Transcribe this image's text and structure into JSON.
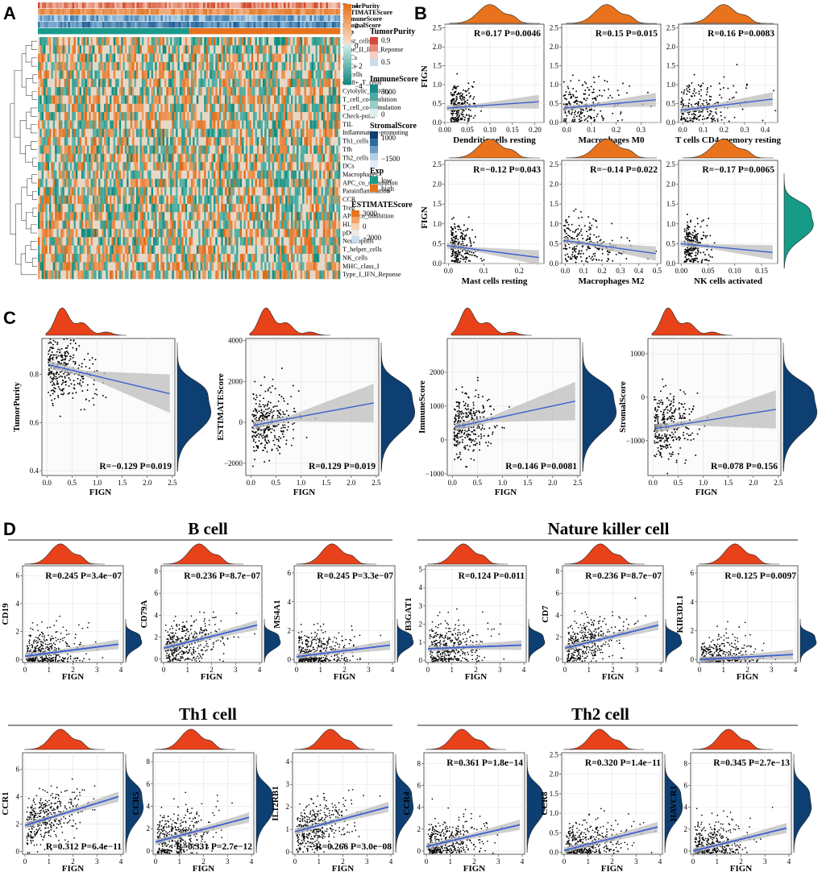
{
  "panels": {
    "A": "A",
    "B": "B",
    "C": "C",
    "D": "D"
  },
  "colors": {
    "orange": "#E8731C",
    "teal": "#1A9A8A",
    "red_density": "#E8421A",
    "navy_density": "#0D3F73",
    "teal_density": "#159B86",
    "fit_line": "#3C5FD0",
    "ci_band": "#BDBDBD",
    "points": "#000000"
  },
  "chart_data": [
    {
      "type": "heatmap",
      "panel": "A",
      "annotation_tracks": [
        "TumorPurity",
        "ESTIMATEScore",
        "ImmuneScore",
        "StromalScore",
        "Exp"
      ],
      "rows": [
        "Mast_cells",
        "Type_II_IFN_Reponse",
        "aDCs",
        "iDCs",
        "B_cells",
        "CD8+_T_cells",
        "Cytolytic_activity",
        "T_cell_co-inhibition",
        "T_cell_co-stimulation",
        "Check-point",
        "TIL",
        "Inflammation-promoting",
        "Th1_cells",
        "Tfh",
        "Th2_cells",
        "DCs",
        "Macrophages",
        "APC_co_stimulation",
        "Parainflammation",
        "CCR",
        "Treg",
        "APC_co_inhibition",
        "HLA",
        "pDCs",
        "Neutrophils",
        "T_helper_cells",
        "NK_cells",
        "MHC_class_I",
        "Type_I_IFN_Reponse"
      ],
      "color_scale": {
        "title": "",
        "ticks": [
          "4",
          "2",
          "0",
          "−2",
          "−4"
        ],
        "range": [
          -4,
          4
        ]
      },
      "legends": [
        {
          "title": "TumorPurity",
          "ticks": [
            "0.9",
            "0.5"
          ]
        },
        {
          "title": "ImmuneScore",
          "ticks": [
            "3000",
            "0"
          ]
        },
        {
          "title": "StromalScore",
          "ticks": [
            "1000",
            "−1500"
          ]
        },
        {
          "title": "Exp",
          "ticks": [
            "low",
            "high"
          ]
        },
        {
          "title": "ESTIMATEScore",
          "ticks": [
            "3000",
            "0",
            "−2000"
          ]
        }
      ]
    },
    {
      "type": "scatter",
      "panel": "B",
      "ylabel": "FIGN",
      "y_ticks": [
        "0.0",
        "0.5",
        "1.0",
        "1.5",
        "2.0",
        "2.5"
      ],
      "ylim": [
        0,
        2.6
      ],
      "plots": [
        {
          "xlabel": "Dendritic cells resting",
          "stat": "R=0.17 P=0.0046",
          "x_ticks": [
            "0.00",
            "0.05",
            "0.10",
            "0.15",
            "0.20"
          ],
          "xlim": [
            0,
            0.22
          ],
          "fit": [
            0.38,
            0.55
          ]
        },
        {
          "xlabel": "Macrophages M0",
          "stat": "R=0.15 P=0.015",
          "x_ticks": [
            "0.0",
            "0.1",
            "0.2",
            "0.3"
          ],
          "xlim": [
            -0.02,
            0.38
          ],
          "fit": [
            0.38,
            0.6
          ]
        },
        {
          "xlabel": "T cells CD4 memory resting",
          "stat": "R=0.16 P=0.0083",
          "x_ticks": [
            "0.0",
            "0.1",
            "0.2",
            "0.3",
            "0.4"
          ],
          "xlim": [
            -0.02,
            0.46
          ],
          "fit": [
            0.32,
            0.62
          ]
        },
        {
          "xlabel": "Mast cells resting",
          "stat": "R=−0.12 P=0.043",
          "x_ticks": [
            "0.0",
            "0.1",
            "0.2"
          ],
          "xlim": [
            -0.01,
            0.27
          ],
          "fit": [
            0.45,
            0.15
          ]
        },
        {
          "xlabel": "Macrophages M2",
          "stat": "R=−0.14 P=0.022",
          "x_ticks": [
            "0.0",
            "0.1",
            "0.2",
            "0.3",
            "0.4",
            "0.5"
          ],
          "xlim": [
            -0.02,
            0.52
          ],
          "fit": [
            0.58,
            0.25
          ]
        },
        {
          "xlabel": "NK cells activated",
          "stat": "R=−0.17 P=0.0065",
          "x_ticks": [
            "0.00",
            "0.05",
            "0.10",
            "0.15"
          ],
          "xlim": [
            -0.005,
            0.18
          ],
          "fit": [
            0.5,
            0.28
          ]
        }
      ]
    },
    {
      "type": "scatter",
      "panel": "C",
      "xlabel": "FIGN",
      "plots": [
        {
          "ylabel": "TumorPurity",
          "stat": "R=−0.129 P=0.019",
          "x_ticks": [
            "0.0",
            "0.5",
            "1.0",
            "1.5",
            "2.0",
            "2.5"
          ],
          "xlim": [
            -0.1,
            2.55
          ],
          "y_ticks": [
            "0.4",
            "0.6",
            "0.8"
          ],
          "ylim": [
            0.38,
            0.95
          ],
          "fit": [
            0.84,
            0.72
          ],
          "fit_x": [
            0.05,
            2.45
          ]
        },
        {
          "ylabel": "ESTIMATEScore",
          "stat": "R=0.129 P=0.019",
          "x_ticks": [
            "0.0",
            "0.5",
            "1.0",
            "1.5",
            "2.0",
            "2.5"
          ],
          "xlim": [
            -0.1,
            2.55
          ],
          "y_ticks": [
            "−2000",
            "0",
            "2000",
            "4000"
          ],
          "ylim": [
            -2600,
            4100
          ],
          "fit": [
            -150,
            950
          ],
          "fit_x": [
            0.05,
            2.45
          ]
        },
        {
          "ylabel": "ImmuneScore",
          "stat": "R=0.146 P=0.0081",
          "x_ticks": [
            "0.0",
            "0.5",
            "1.0",
            "1.5",
            "2.0",
            "2.5"
          ],
          "xlim": [
            -0.1,
            2.55
          ],
          "y_ticks": [
            "−1000",
            "0",
            "1000",
            "2000"
          ],
          "ylim": [
            -1050,
            3000
          ],
          "fit": [
            380,
            1150
          ],
          "fit_x": [
            0.05,
            2.45
          ]
        },
        {
          "ylabel": "StromalScore",
          "stat": "R=0.078 P=0.156",
          "x_ticks": [
            "0.0",
            "0.5",
            "1.0",
            "1.5",
            "2.0",
            "2.5"
          ],
          "xlim": [
            -0.1,
            2.55
          ],
          "y_ticks": [
            "−1000",
            "0",
            "1000"
          ],
          "ylim": [
            -1800,
            1350
          ],
          "fit": [
            -720,
            -280
          ],
          "fit_x": [
            0.05,
            2.45
          ]
        }
      ]
    },
    {
      "type": "scatter",
      "panel": "D",
      "xlabel": "FIGN",
      "x_ticks": [
        "0",
        "1",
        "2",
        "3",
        "4"
      ],
      "xlim": [
        -0.1,
        4.1
      ],
      "groups": [
        {
          "title": "B cell",
          "plots": [
            {
              "ylabel": "CD19",
              "stat": "R=0.245 P=3.4e−07",
              "y_ticks": [
                "0",
                "2",
                "4",
                "6"
              ],
              "ylim": [
                -0.2,
                6.7
              ],
              "fit": [
                0.25,
                1.1
              ]
            },
            {
              "ylabel": "CD79A",
              "stat": "R=0.236 P=8.7e−07",
              "y_ticks": [
                "0",
                "2",
                "4",
                "6",
                "8"
              ],
              "ylim": [
                -0.3,
                8.5
              ],
              "fit": [
                1.0,
                3.1
              ]
            },
            {
              "ylabel": "MS4A1",
              "stat": "R=0.245 P=3.3e−07",
              "y_ticks": [
                "0",
                "2",
                "4",
                "6"
              ],
              "ylim": [
                -0.2,
                6.5
              ],
              "fit": [
                0.2,
                1.0
              ]
            }
          ]
        },
        {
          "title": "Nature killer cell",
          "plots": [
            {
              "ylabel": "B3GAT1",
              "stat": "R=0.124 P=0.011",
              "y_ticks": [
                "0",
                "1",
                "2",
                "3",
                "4",
                "5"
              ],
              "ylim": [
                -0.1,
                5.2
              ],
              "fit": [
                0.65,
                0.85
              ]
            },
            {
              "ylabel": "CD7",
              "stat": "R=0.236 P=8.7e−07",
              "y_ticks": [
                "0",
                "2",
                "4",
                "6",
                "8"
              ],
              "ylim": [
                -0.3,
                8.5
              ],
              "fit": [
                1.0,
                3.1
              ]
            },
            {
              "ylabel": "KIR3DL1",
              "stat": "R=0.125 P=0.0097",
              "y_ticks": [
                "0",
                "2",
                "4",
                "6"
              ],
              "ylim": [
                -0.2,
                6.5
              ],
              "fit": [
                0.0,
                0.35
              ]
            }
          ]
        },
        {
          "title": "Th1 cell",
          "plots": [
            {
              "ylabel": "CCR1",
              "stat": "R=0.312 P=6.4e−11",
              "y_ticks": [
                "0",
                "2",
                "4",
                "6"
              ],
              "ylim": [
                -0.2,
                7.2
              ],
              "fit": [
                1.9,
                4.0
              ]
            },
            {
              "ylabel": "CCR5",
              "stat": "R=0.331 P=2.7e−12",
              "y_ticks": [
                "0",
                "2",
                "4",
                "6",
                "8"
              ],
              "ylim": [
                -0.3,
                8.8
              ],
              "fit": [
                0.8,
                3.0
              ]
            },
            {
              "ylabel": "IL12RB1",
              "stat": "R=0.266 P=3.0e−08",
              "y_ticks": [
                "0",
                "1",
                "2",
                "3",
                "4"
              ],
              "ylim": [
                -0.1,
                4.4
              ],
              "fit": [
                0.9,
                2.0
              ]
            }
          ]
        },
        {
          "title": "Th2 cell",
          "plots": [
            {
              "ylabel": "CCR4",
              "stat": "R=0.361 P=1.8e−14",
              "y_ticks": [
                "0",
                "2",
                "4",
                "6",
                "8"
              ],
              "ylim": [
                -0.3,
                9
              ],
              "fit": [
                0.4,
                2.4
              ]
            },
            {
              "ylabel": "CCR8",
              "stat": "R=0.320 P=1.4e−11",
              "y_ticks": [
                "0.0",
                "0.5",
                "1.0",
                "1.5",
                "2.0",
                "2.5"
              ],
              "ylim": [
                -0.05,
                2.55
              ],
              "fit": [
                0.05,
                0.65
              ]
            },
            {
              "ylabel": "HAVCR1",
              "stat": "R=0.345 P=2.7e−13",
              "y_ticks": [
                "0",
                "2",
                "4",
                "6",
                "8"
              ],
              "ylim": [
                -0.3,
                9
              ],
              "fit": [
                0.0,
                2.1
              ]
            }
          ]
        }
      ]
    }
  ]
}
